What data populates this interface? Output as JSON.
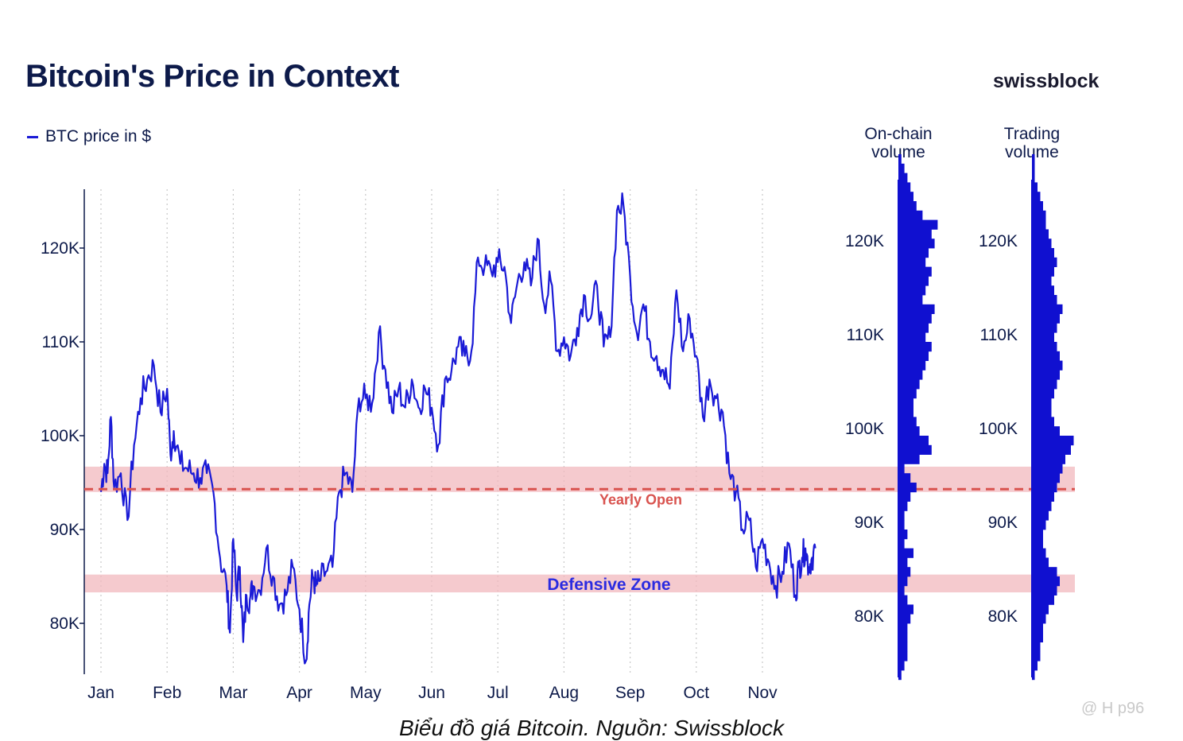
{
  "title": "Bitcoin's Price in Context",
  "brand": "swissblock",
  "legend": {
    "label": "BTC price in $"
  },
  "headers": {
    "onchain": [
      "On-chain",
      "volume"
    ],
    "trading": [
      "Trading",
      "volume"
    ]
  },
  "caption": "Biểu đồ giá Bitcoin. Nguồn: Swissblock",
  "watermark": "@ H p96",
  "colors": {
    "price_line": "#1a1ad6",
    "band": "#f2b8bd",
    "yearly_open": "#d9534f",
    "defensive_label": "#2b2be0",
    "axis": "#0d1a4a"
  },
  "chart_data": [
    {
      "type": "line",
      "name": "BTC price in $",
      "title": "Bitcoin's Price in Context",
      "x_ticks": [
        "Jan",
        "Feb",
        "Mar",
        "Apr",
        "May",
        "Jun",
        "Jul",
        "Aug",
        "Sep",
        "Oct",
        "Nov"
      ],
      "y_ticks": [
        "80K",
        "90K",
        "100K",
        "110K",
        "120K"
      ],
      "y_tick_values": [
        80000,
        90000,
        100000,
        110000,
        120000
      ],
      "ylim": [
        75000,
        126000
      ],
      "xlim": [
        0,
        11.3
      ],
      "grid": "vertical dotted at each month",
      "series": [
        {
          "name": "BTC price in $",
          "x": [
            0,
            0.05,
            0.1,
            0.15,
            0.2,
            0.3,
            0.4,
            0.5,
            0.6,
            0.7,
            0.8,
            0.9,
            1.0,
            1.05,
            1.1,
            1.2,
            1.3,
            1.4,
            1.5,
            1.6,
            1.7,
            1.8,
            1.9,
            1.95,
            2.0,
            2.05,
            2.1,
            2.15,
            2.2,
            2.25,
            2.3,
            2.4,
            2.5,
            2.6,
            2.7,
            2.8,
            2.9,
            3.0,
            3.1,
            3.15,
            3.2,
            3.25,
            3.3,
            3.4,
            3.5,
            3.6,
            3.7,
            3.8,
            3.9,
            4.0,
            4.1,
            4.2,
            4.3,
            4.4,
            4.5,
            4.6,
            4.7,
            4.8,
            4.9,
            5.0,
            5.1,
            5.2,
            5.3,
            5.4,
            5.5,
            5.6,
            5.7,
            5.8,
            5.9,
            6.0,
            6.1,
            6.2,
            6.3,
            6.4,
            6.5,
            6.6,
            6.7,
            6.8,
            6.9,
            7.0,
            7.1,
            7.2,
            7.3,
            7.4,
            7.5,
            7.6,
            7.7,
            7.8,
            7.9,
            8.0,
            8.1,
            8.2,
            8.3,
            8.4,
            8.5,
            8.6,
            8.7,
            8.8,
            8.9,
            9.0,
            9.1,
            9.2,
            9.3,
            9.4,
            9.5,
            9.6,
            9.7,
            9.8,
            9.9,
            10.0,
            10.1,
            10.2,
            10.3,
            10.4,
            10.5,
            10.55,
            10.6,
            10.65,
            10.7,
            10.75,
            10.8
          ],
          "values": [
            94000,
            97000,
            96000,
            102000,
            94500,
            96000,
            91000,
            99000,
            104000,
            106000,
            107500,
            102500,
            105000,
            98000,
            100500,
            97000,
            96500,
            96000,
            95500,
            96000,
            94000,
            87000,
            84000,
            79000,
            89000,
            83000,
            86000,
            78000,
            83000,
            82500,
            84000,
            83500,
            88000,
            85000,
            82000,
            83000,
            86000,
            81500,
            76000,
            82000,
            85000,
            84000,
            84500,
            85500,
            86000,
            94000,
            96000,
            94000,
            104000,
            104000,
            103500,
            111000,
            107000,
            102500,
            105000,
            103000,
            106000,
            103000,
            105000,
            103000,
            99000,
            106000,
            107000,
            109500,
            108500,
            109000,
            119000,
            118000,
            117500,
            118500,
            118000,
            112000,
            116500,
            118500,
            116000,
            121000,
            114000,
            116500,
            109000,
            110500,
            108500,
            111500,
            115000,
            112500,
            116000,
            109500,
            110500,
            124000,
            124500,
            117000,
            111000,
            114000,
            110000,
            108500,
            107000,
            105000,
            115500,
            109000,
            112500,
            108500,
            102000,
            106000,
            104000,
            102500,
            96000,
            94000,
            90000,
            91000,
            86000,
            89000,
            86500,
            84000,
            85500,
            88500,
            83000,
            86000,
            87000,
            88000,
            86000,
            87000,
            88000
          ],
          "color": "#1a1ad6"
        }
      ],
      "reference_lines": [
        {
          "label": "Yearly Open",
          "value": 94300,
          "style": "dashed"
        }
      ],
      "bands": [
        {
          "label": "",
          "from": 94000,
          "to": 96700
        },
        {
          "label": "Defensive Zone",
          "from": 83300,
          "to": 85200
        }
      ],
      "legend": "top-left"
    },
    {
      "type": "bar",
      "orientation": "horizontal",
      "name": "On-chain volume",
      "title": "On-chain volume",
      "y_ticks": [
        "80K",
        "90K",
        "100K",
        "110K",
        "120K"
      ],
      "bins_from": 74000,
      "bin_size": 1000,
      "values": [
        1,
        2,
        3,
        3,
        3,
        3,
        4,
        5,
        3,
        2,
        3,
        4,
        3,
        5,
        2,
        3,
        2,
        2,
        3,
        4,
        6,
        4,
        2,
        7,
        11,
        10,
        7,
        6,
        5,
        5,
        6,
        7,
        8,
        9,
        10,
        11,
        9,
        10,
        11,
        12,
        8,
        9,
        10,
        11,
        9,
        10,
        12,
        11,
        13,
        8,
        6,
        5,
        4,
        3,
        2,
        1
      ]
    },
    {
      "type": "bar",
      "orientation": "horizontal",
      "name": "Trading volume",
      "title": "Trading volume",
      "y_ticks": [
        "80K",
        "90K",
        "100K",
        "110K",
        "120K"
      ],
      "bins_from": 74000,
      "bin_size": 1000,
      "values": [
        1,
        2,
        3,
        3,
        4,
        4,
        5,
        6,
        8,
        9,
        10,
        9,
        6,
        5,
        4,
        4,
        5,
        6,
        7,
        8,
        9,
        10,
        11,
        12,
        14,
        15,
        10,
        8,
        7,
        7,
        8,
        9,
        10,
        11,
        10,
        9,
        8,
        9,
        10,
        11,
        9,
        8,
        7,
        8,
        9,
        8,
        7,
        6,
        5,
        5,
        4,
        3,
        2,
        1,
        1,
        1
      ]
    }
  ]
}
